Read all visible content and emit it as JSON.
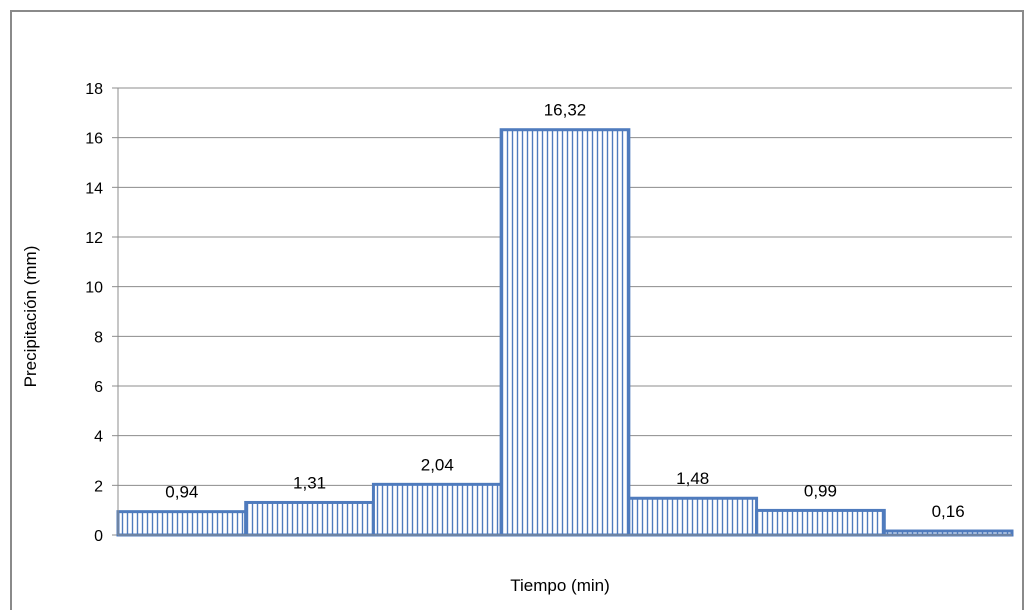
{
  "chart_data": {
    "type": "bar",
    "categories": [
      "",
      "",
      "",
      "",
      "",
      "",
      ""
    ],
    "values": [
      0.94,
      1.31,
      2.04,
      16.32,
      1.48,
      0.99,
      0.16
    ],
    "data_labels": [
      "0,94",
      "1,31",
      "2,04",
      "16,32",
      "1,48",
      "0,99",
      "0,16"
    ],
    "title": "",
    "xlabel": "Tiempo (min)",
    "ylabel": "Precipitación (mm)",
    "ylim": [
      0,
      18
    ],
    "yticks": [
      0,
      2,
      4,
      6,
      8,
      10,
      12,
      14,
      16,
      18
    ],
    "grid": true,
    "legend": "none",
    "bar_fill_pattern": "vertical-lines",
    "colors": {
      "bar_border": "#4f7bbd",
      "bar_hatch": "#4f7bbd",
      "grid": "#8c8c8c",
      "axis": "#8c8c8c"
    }
  }
}
